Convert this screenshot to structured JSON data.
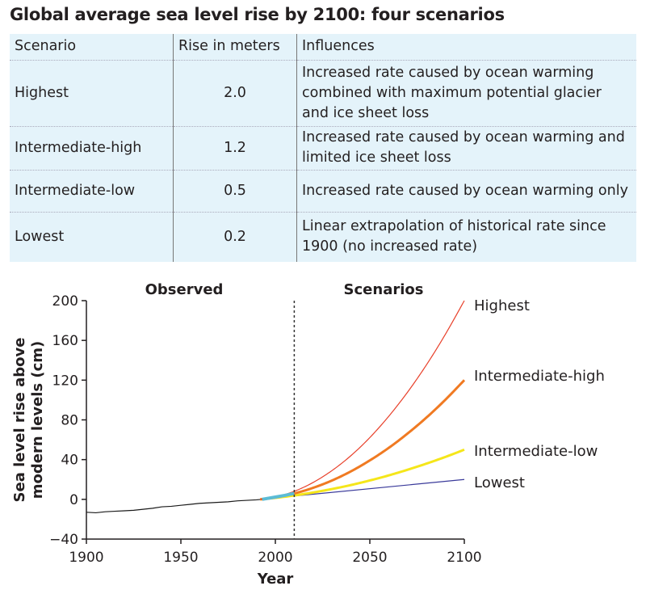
{
  "title": "Global average sea level rise by 2100: four scenarios",
  "table": {
    "headers": [
      "Scenario",
      "Rise in meters",
      "Influences"
    ],
    "rows": [
      {
        "scenario": "Highest",
        "rise": "2.0",
        "influences": "Increased rate caused by ocean warming combined with maximum potential glacier and ice sheet loss"
      },
      {
        "scenario": "Intermediate-high",
        "rise": "1.2",
        "influences": "Increased rate caused by ocean warming and limited ice sheet loss"
      },
      {
        "scenario": "Intermediate-low",
        "rise": "0.5",
        "influences": "Increased rate caused by ocean warming only"
      },
      {
        "scenario": "Lowest",
        "rise": "0.2",
        "influences": "Linear extrapolation of historical rate since 1900 (no increased rate)"
      }
    ]
  },
  "chart_data": {
    "type": "line",
    "xlabel": "Year",
    "ylabel": "Sea level rise above modern levels (cm)",
    "xlim": [
      1900,
      2100
    ],
    "ylim": [
      -40,
      200
    ],
    "xticks": [
      "1900",
      "1950",
      "2000",
      "2050",
      "2100"
    ],
    "yticks": [
      "200",
      "160",
      "120",
      "80",
      "40",
      "0",
      "−40"
    ],
    "region_labels": [
      "Observed",
      "Scenarios"
    ],
    "divider_year": 2010,
    "grid": false,
    "series": [
      {
        "name": "",
        "color": "#1a1a1a",
        "points": [
          [
            1900,
            -13
          ],
          [
            1905,
            -13.5
          ],
          [
            1910,
            -12.5
          ],
          [
            1915,
            -12
          ],
          [
            1920,
            -11.5
          ],
          [
            1925,
            -11
          ],
          [
            1930,
            -10
          ],
          [
            1935,
            -9
          ],
          [
            1940,
            -7.5
          ],
          [
            1945,
            -7
          ],
          [
            1950,
            -6
          ],
          [
            1955,
            -5
          ],
          [
            1960,
            -4
          ],
          [
            1965,
            -3.5
          ],
          [
            1970,
            -3
          ],
          [
            1975,
            -2.5
          ],
          [
            1980,
            -1.5
          ],
          [
            1985,
            -1
          ],
          [
            1990,
            -0.5
          ],
          [
            1993,
            0
          ]
        ]
      },
      {
        "name": "",
        "color": "#5bbcd6",
        "points": [
          [
            1993,
            0
          ],
          [
            2000,
            2.3
          ],
          [
            2005,
            4
          ],
          [
            2010,
            6
          ]
        ]
      },
      {
        "name": "Highest",
        "color": "#e8402a",
        "points": [
          [
            1992,
            0
          ],
          [
            2000,
            2.4
          ],
          [
            2010,
            8.1
          ],
          [
            2020,
            17
          ],
          [
            2030,
            29
          ],
          [
            2040,
            44
          ],
          [
            2050,
            62.2
          ],
          [
            2060,
            83.6
          ],
          [
            2070,
            108
          ],
          [
            2080,
            135.5
          ],
          [
            2090,
            166.2
          ],
          [
            2100,
            200
          ]
        ]
      },
      {
        "name": "Intermediate-high",
        "color": "#f07a22",
        "points": [
          [
            1992,
            0
          ],
          [
            2000,
            1.9
          ],
          [
            2010,
            5.9
          ],
          [
            2020,
            11.6
          ],
          [
            2030,
            19
          ],
          [
            2040,
            28.2
          ],
          [
            2050,
            39.2
          ],
          [
            2060,
            51.8
          ],
          [
            2070,
            66.3
          ],
          [
            2080,
            82.4
          ],
          [
            2090,
            100.3
          ],
          [
            2100,
            120
          ]
        ]
      },
      {
        "name": "Intermediate-low",
        "color": "#f5e61a",
        "points": [
          [
            1992,
            0
          ],
          [
            2000,
            1.5
          ],
          [
            2010,
            3.9
          ],
          [
            2020,
            6.9
          ],
          [
            2030,
            10.4
          ],
          [
            2040,
            14.4
          ],
          [
            2050,
            19
          ],
          [
            2060,
            24.1
          ],
          [
            2070,
            29.8
          ],
          [
            2080,
            36
          ],
          [
            2090,
            42.7
          ],
          [
            2100,
            50
          ]
        ]
      },
      {
        "name": "Lowest",
        "color": "#3a3a9a",
        "points": [
          [
            1992,
            0
          ],
          [
            2100,
            20
          ]
        ]
      }
    ]
  }
}
